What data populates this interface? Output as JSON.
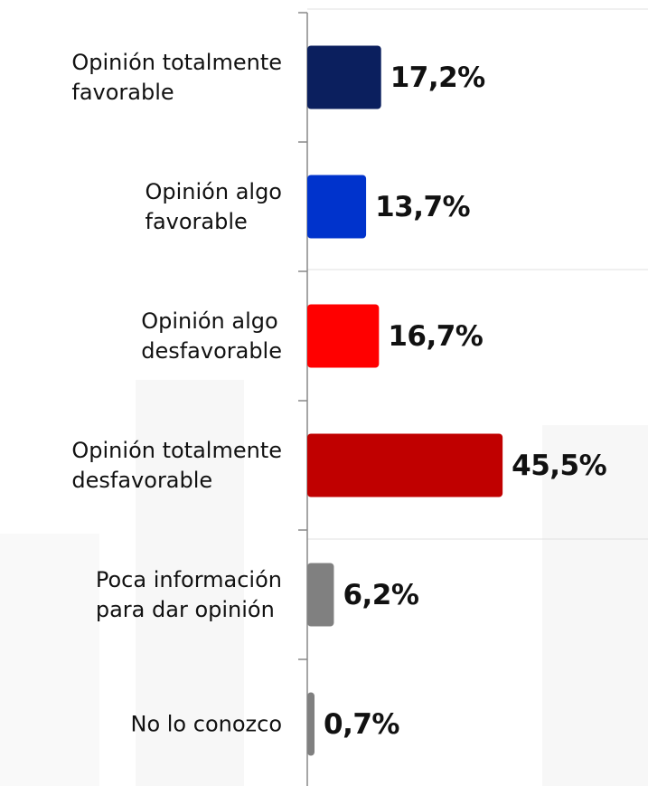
{
  "chart_data": {
    "type": "bar",
    "orientation": "horizontal",
    "categories": [
      "Opinión totalmente\nfavorable",
      "Opinión algo\nfavorable",
      "Opinión algo\ndesfavorable",
      "Opinión totalmente\ndesfavorable",
      "Poca información\npara dar opinión",
      "No lo conozco"
    ],
    "values": [
      17.2,
      13.7,
      16.7,
      45.5,
      6.2,
      0.7
    ],
    "value_labels": [
      "17,2%",
      "13,7%",
      "16,7%",
      "45,5%",
      "6,2%",
      "0,7%"
    ],
    "colors": [
      "#0b1f5e",
      "#0033cc",
      "#ff0000",
      "#c00000",
      "#808080",
      "#808080"
    ]
  }
}
